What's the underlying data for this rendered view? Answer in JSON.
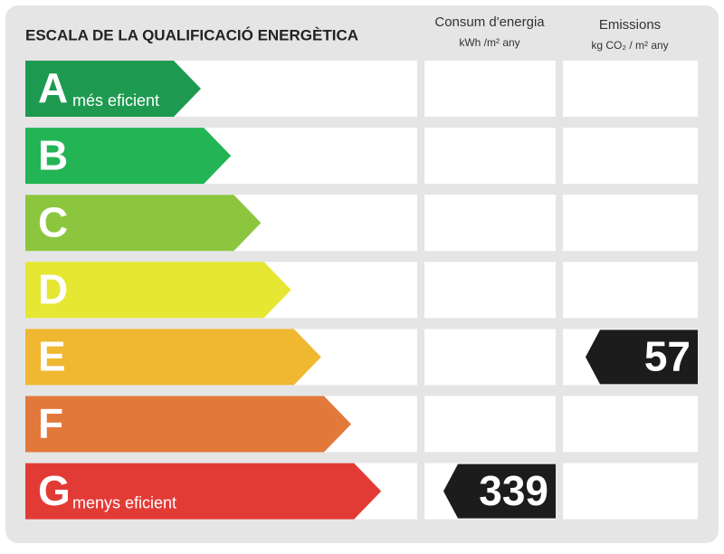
{
  "header": {
    "title": "ESCALA DE LA QUALIFICACIÓ ENERGÈTICA",
    "columns": [
      {
        "title": "Consum d'energia",
        "unit": "kWh /m² any"
      },
      {
        "title": "Emissions",
        "unit": "kg CO₂ / m² any"
      }
    ]
  },
  "rows": [
    {
      "letter": "A",
      "label": "més eficient",
      "color": "#1e9a50"
    },
    {
      "letter": "B",
      "color": "#22b455"
    },
    {
      "letter": "C",
      "color": "#8cc63f"
    },
    {
      "letter": "D",
      "color": "#e5e733"
    },
    {
      "letter": "E",
      "color": "#f0b731",
      "emissions": 57
    },
    {
      "letter": "F",
      "color": "#e2793b"
    },
    {
      "letter": "G",
      "label": "menys eficient",
      "color": "#e23b36",
      "energy": 339
    }
  ]
}
